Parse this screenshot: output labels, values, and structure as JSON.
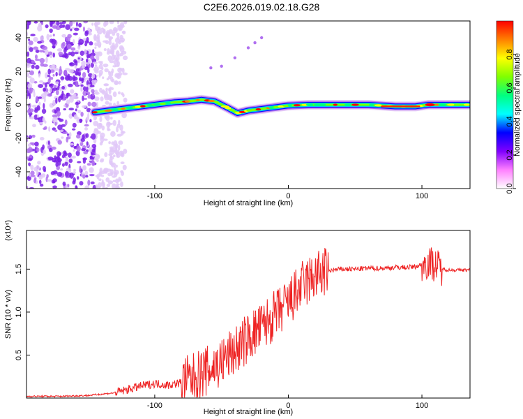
{
  "title": "C2E6.2026.019.02.18.G28",
  "chart_data": [
    {
      "type": "heatmap",
      "title": "C2E6.2026.019.02.18.G28",
      "xlabel": "Height of straight line (km)",
      "ylabel": "Frequency (Hz)",
      "xlim": [
        -196,
        136
      ],
      "ylim": [
        -50,
        50
      ],
      "xticks": [
        -100,
        0,
        100
      ],
      "yticks": [
        -40,
        -20,
        0,
        20,
        40
      ],
      "colorbar": {
        "label": "Normalized spectral amplitude",
        "range": [
          0,
          1
        ],
        "ticks": [
          "0.0",
          "0.2",
          "0.4",
          "0.6",
          "0.8"
        ],
        "colors": [
          "#ffffff",
          "#ff80ff",
          "#8000ff",
          "#0000ff",
          "#00ffff",
          "#00ff80",
          "#80ff00",
          "#ffff00",
          "#ff8000",
          "#ff0000"
        ]
      },
      "ridge": [
        [
          -145,
          -4.5
        ],
        [
          -130,
          -3
        ],
        [
          -115,
          -1.5
        ],
        [
          -100,
          0
        ],
        [
          -85,
          1.5
        ],
        [
          -75,
          2
        ],
        [
          -65,
          3
        ],
        [
          -55,
          2
        ],
        [
          -45,
          -2
        ],
        [
          -38,
          -5
        ],
        [
          -30,
          -3.5
        ],
        [
          -20,
          -2.5
        ],
        [
          -10,
          -1.5
        ],
        [
          0,
          -0.5
        ],
        [
          15,
          0
        ],
        [
          30,
          0
        ],
        [
          60,
          0
        ],
        [
          80,
          -1
        ],
        [
          95,
          -1
        ],
        [
          105,
          0
        ],
        [
          120,
          0
        ],
        [
          136,
          0
        ]
      ],
      "streak": [
        [
          -58,
          22
        ],
        [
          -50,
          23
        ],
        [
          -40,
          28
        ],
        [
          -30,
          34
        ],
        [
          -25,
          37
        ],
        [
          -20,
          40
        ]
      ]
    },
    {
      "type": "line",
      "xlabel": "Height of straight line (km)",
      "ylabel": "SNR (10 * v/v)",
      "yscale_label": "(x10⁴)",
      "xlim": [
        -196,
        136
      ],
      "ylim": [
        0,
        1.95
      ],
      "xticks": [
        -100,
        0,
        100
      ],
      "yticks": [
        0.5,
        1.0,
        1.5
      ],
      "series": [
        {
          "name": "SNR",
          "color": "#ee2222",
          "x": [
            -196,
            -170,
            -150,
            -130,
            -120,
            -110,
            -100,
            -90,
            -80,
            -70,
            -60,
            -50,
            -40,
            -30,
            -20,
            -10,
            0,
            10,
            20,
            30,
            40,
            50,
            60,
            70,
            80,
            90,
            95,
            100,
            105,
            110,
            115,
            120,
            136
          ],
          "y": [
            0.02,
            0.02,
            0.03,
            0.06,
            0.1,
            0.14,
            0.17,
            0.15,
            0.18,
            0.24,
            0.32,
            0.42,
            0.55,
            0.7,
            0.82,
            0.96,
            1.1,
            1.3,
            1.42,
            1.48,
            1.5,
            1.5,
            1.51,
            1.51,
            1.52,
            1.52,
            1.53,
            1.55,
            1.58,
            1.55,
            1.5,
            1.49,
            1.49
          ]
        }
      ]
    }
  ]
}
